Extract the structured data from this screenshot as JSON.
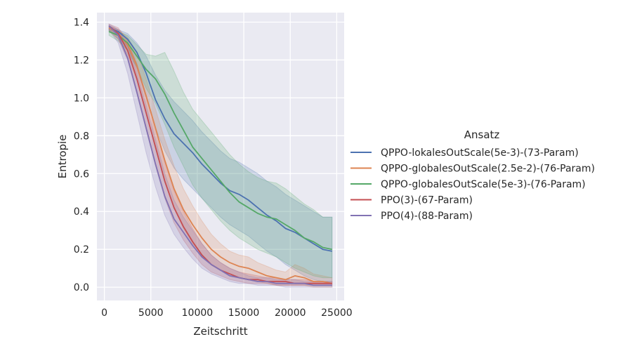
{
  "chart_data": {
    "type": "line",
    "xlabel": "Zeitschritt",
    "ylabel": "Entropie",
    "xlim": [
      -800,
      25800
    ],
    "ylim": [
      -0.07,
      1.45
    ],
    "xticks": [
      0,
      5000,
      10000,
      15000,
      20000,
      25000
    ],
    "yticks": [
      0.0,
      0.2,
      0.4,
      0.6,
      0.8,
      1.0,
      1.2,
      1.4
    ],
    "xtick_labels": [
      "0",
      "5000",
      "10000",
      "15000",
      "20000",
      "25000"
    ],
    "ytick_labels": [
      "0.0",
      "0.2",
      "0.4",
      "0.6",
      "0.8",
      "1.0",
      "1.2",
      "1.4"
    ],
    "grid": true,
    "background": "#eaeaf2",
    "legend": {
      "title": "Ansatz",
      "placement": "right"
    },
    "series": [
      {
        "name": "QPPO-lokalesOutScale(5e-3)-(73-Param)",
        "color": "#4c72b0",
        "x": [
          500,
          1500,
          2500,
          3500,
          4500,
          5500,
          6500,
          7500,
          8500,
          9500,
          10500,
          11500,
          12500,
          13500,
          14500,
          15500,
          16500,
          17500,
          18500,
          19500,
          20500,
          21500,
          22500,
          23500,
          24500
        ],
        "y": [
          1.37,
          1.35,
          1.31,
          1.24,
          1.13,
          0.99,
          0.89,
          0.81,
          0.76,
          0.71,
          0.65,
          0.6,
          0.55,
          0.51,
          0.49,
          0.46,
          0.42,
          0.38,
          0.35,
          0.31,
          0.29,
          0.26,
          0.23,
          0.2,
          0.19
        ],
        "lower": [
          1.35,
          1.33,
          1.27,
          1.15,
          1.0,
          0.84,
          0.72,
          0.63,
          0.57,
          0.52,
          0.47,
          0.42,
          0.37,
          0.33,
          0.3,
          0.27,
          0.23,
          0.19,
          0.16,
          0.12,
          0.09,
          0.06,
          0.04,
          0.03,
          0.03
        ],
        "upper": [
          1.38,
          1.36,
          1.34,
          1.29,
          1.22,
          1.12,
          1.04,
          0.98,
          0.93,
          0.88,
          0.82,
          0.77,
          0.72,
          0.68,
          0.66,
          0.63,
          0.6,
          0.56,
          0.53,
          0.49,
          0.46,
          0.43,
          0.4,
          0.37,
          0.37
        ]
      },
      {
        "name": "QPPO-globalesOutScale(2.5e-2)-(76-Param)",
        "color": "#dd8452",
        "x": [
          500,
          1500,
          2500,
          3500,
          4500,
          5500,
          6500,
          7500,
          8500,
          9500,
          10500,
          11500,
          12500,
          13500,
          14500,
          15500,
          16500,
          17500,
          18500,
          19500,
          20500,
          21500,
          22500,
          23500,
          24500
        ],
        "y": [
          1.37,
          1.34,
          1.28,
          1.17,
          1.01,
          0.84,
          0.67,
          0.52,
          0.41,
          0.33,
          0.26,
          0.2,
          0.16,
          0.13,
          0.11,
          0.1,
          0.08,
          0.06,
          0.05,
          0.04,
          0.06,
          0.05,
          0.03,
          0.03,
          0.02
        ],
        "lower": [
          1.35,
          1.31,
          1.23,
          1.09,
          0.92,
          0.73,
          0.56,
          0.42,
          0.31,
          0.23,
          0.17,
          0.12,
          0.09,
          0.07,
          0.05,
          0.04,
          0.03,
          0.02,
          0.01,
          0.01,
          0.01,
          0.01,
          0.0,
          0.0,
          0.0
        ],
        "upper": [
          1.38,
          1.36,
          1.32,
          1.24,
          1.1,
          0.94,
          0.78,
          0.64,
          0.52,
          0.43,
          0.35,
          0.28,
          0.23,
          0.19,
          0.17,
          0.16,
          0.13,
          0.11,
          0.09,
          0.08,
          0.12,
          0.1,
          0.07,
          0.06,
          0.05
        ]
      },
      {
        "name": "QPPO-globalesOutScale(5e-3)-(76-Param)",
        "color": "#55a868",
        "x": [
          500,
          1500,
          2500,
          3500,
          4500,
          5500,
          6500,
          7500,
          8500,
          9500,
          10500,
          11500,
          12500,
          13500,
          14500,
          15500,
          16500,
          17500,
          18500,
          19500,
          20500,
          21500,
          22500,
          23500,
          24500
        ],
        "y": [
          1.35,
          1.33,
          1.29,
          1.22,
          1.15,
          1.1,
          1.02,
          0.92,
          0.83,
          0.74,
          0.68,
          0.62,
          0.56,
          0.5,
          0.45,
          0.42,
          0.39,
          0.37,
          0.36,
          0.33,
          0.3,
          0.26,
          0.24,
          0.21,
          0.2
        ],
        "lower": [
          1.33,
          1.3,
          1.25,
          1.16,
          1.05,
          0.97,
          0.86,
          0.74,
          0.64,
          0.54,
          0.47,
          0.41,
          0.35,
          0.3,
          0.26,
          0.23,
          0.2,
          0.18,
          0.16,
          0.13,
          0.1,
          0.08,
          0.06,
          0.05,
          0.05
        ],
        "upper": [
          1.36,
          1.35,
          1.33,
          1.28,
          1.23,
          1.22,
          1.24,
          1.14,
          1.03,
          0.94,
          0.88,
          0.82,
          0.76,
          0.7,
          0.65,
          0.61,
          0.58,
          0.56,
          0.55,
          0.52,
          0.48,
          0.44,
          0.41,
          0.37,
          0.37
        ]
      },
      {
        "name": "PPO(3)-(67-Param)",
        "color": "#c44e52",
        "x": [
          500,
          1500,
          2500,
          3500,
          4500,
          5500,
          6500,
          7500,
          8500,
          9500,
          10500,
          11500,
          12500,
          13500,
          14500,
          15500,
          16500,
          17500,
          18500,
          19500,
          20500,
          21500,
          22500,
          23500,
          24500
        ],
        "y": [
          1.38,
          1.34,
          1.25,
          1.1,
          0.92,
          0.74,
          0.56,
          0.42,
          0.32,
          0.24,
          0.17,
          0.12,
          0.09,
          0.07,
          0.05,
          0.04,
          0.04,
          0.03,
          0.03,
          0.03,
          0.02,
          0.02,
          0.02,
          0.02,
          0.02
        ],
        "lower": [
          1.36,
          1.31,
          1.2,
          1.02,
          0.83,
          0.64,
          0.47,
          0.34,
          0.25,
          0.18,
          0.12,
          0.08,
          0.06,
          0.04,
          0.03,
          0.02,
          0.02,
          0.02,
          0.01,
          0.01,
          0.01,
          0.01,
          0.01,
          0.01,
          0.01
        ],
        "upper": [
          1.39,
          1.37,
          1.3,
          1.18,
          1.01,
          0.84,
          0.66,
          0.51,
          0.4,
          0.31,
          0.23,
          0.17,
          0.13,
          0.1,
          0.08,
          0.07,
          0.06,
          0.05,
          0.05,
          0.04,
          0.04,
          0.04,
          0.03,
          0.03,
          0.03
        ]
      },
      {
        "name": "PPO(4)-(88-Param)",
        "color": "#8172b3",
        "x": [
          500,
          1500,
          2500,
          3500,
          4500,
          5500,
          6500,
          7500,
          8500,
          9500,
          10500,
          11500,
          12500,
          13500,
          14500,
          15500,
          16500,
          17500,
          18500,
          19500,
          20500,
          21500,
          22500,
          23500,
          24500
        ],
        "y": [
          1.38,
          1.33,
          1.21,
          1.03,
          0.84,
          0.65,
          0.48,
          0.36,
          0.29,
          0.22,
          0.16,
          0.12,
          0.09,
          0.06,
          0.05,
          0.04,
          0.03,
          0.03,
          0.02,
          0.02,
          0.02,
          0.02,
          0.01,
          0.01,
          0.01
        ],
        "lower": [
          1.36,
          1.29,
          1.13,
          0.92,
          0.71,
          0.53,
          0.38,
          0.28,
          0.21,
          0.15,
          0.1,
          0.07,
          0.05,
          0.03,
          0.02,
          0.02,
          0.01,
          0.01,
          0.01,
          0.0,
          0.0,
          0.0,
          0.0,
          0.0,
          0.0
        ],
        "upper": [
          1.39,
          1.36,
          1.28,
          1.13,
          0.96,
          0.78,
          0.6,
          0.46,
          0.37,
          0.3,
          0.23,
          0.17,
          0.13,
          0.1,
          0.08,
          0.06,
          0.05,
          0.05,
          0.04,
          0.04,
          0.04,
          0.03,
          0.03,
          0.03,
          0.03
        ]
      }
    ]
  }
}
